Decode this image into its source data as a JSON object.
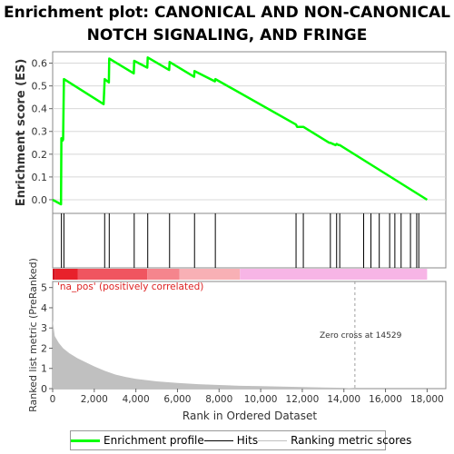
{
  "title_lines": [
    "Enrichment plot: CANONICAL AND NON-CANONICAL",
    "NOTCH SIGNALING, AND FRINGE"
  ],
  "colors": {
    "enrichment_line": "#00ff00",
    "hit_line": "#000000",
    "metric_fill": "#c0c0c0",
    "zero_cross_line": "#a0a0a0",
    "pos_label": "#dd2222",
    "gradient": [
      "#e8212b",
      "#f05560",
      "#f5858d",
      "#f8b0b5",
      "#f7b5e6"
    ]
  },
  "annotations": {
    "na_pos": "'na_pos' (positively correlated)",
    "zero_cross": "Zero cross at 14529"
  },
  "legend": {
    "enrichment": "Enrichment profile",
    "hits": "Hits",
    "metric": "Ranking metric scores"
  },
  "chart_data": [
    {
      "type": "line",
      "name": "enrichment-profile",
      "ylabel": "Enrichment score (ES)",
      "xlim": [
        0,
        18900
      ],
      "ylim": [
        -0.06,
        0.65
      ],
      "yticks": [
        "0.0",
        "0.1",
        "0.2",
        "0.3",
        "0.4",
        "0.5",
        "0.6"
      ],
      "points": [
        [
          0,
          0.0
        ],
        [
          400,
          -0.02
        ],
        [
          420,
          0.27
        ],
        [
          480,
          0.26
        ],
        [
          500,
          0.265
        ],
        [
          540,
          0.53
        ],
        [
          2450,
          0.42
        ],
        [
          2500,
          0.53
        ],
        [
          2700,
          0.515
        ],
        [
          2720,
          0.62
        ],
        [
          3900,
          0.555
        ],
        [
          3920,
          0.61
        ],
        [
          4550,
          0.58
        ],
        [
          4570,
          0.625
        ],
        [
          5600,
          0.57
        ],
        [
          5620,
          0.605
        ],
        [
          6800,
          0.54
        ],
        [
          6820,
          0.565
        ],
        [
          7800,
          0.52
        ],
        [
          7820,
          0.53
        ],
        [
          11700,
          0.33
        ],
        [
          11750,
          0.32
        ],
        [
          12000,
          0.32
        ],
        [
          12050,
          0.32
        ],
        [
          13300,
          0.25
        ],
        [
          13350,
          0.25
        ],
        [
          13600,
          0.24
        ],
        [
          13650,
          0.245
        ],
        [
          13750,
          0.24
        ],
        [
          13800,
          0.24
        ],
        [
          18000,
          0.0
        ]
      ]
    },
    {
      "type": "hits",
      "name": "gene-hits",
      "x": [
        420,
        540,
        2500,
        2720,
        3920,
        4570,
        5620,
        6820,
        7820,
        11700,
        12050,
        13350,
        13650,
        13800,
        14950,
        15300,
        15700,
        16200,
        16450,
        16750,
        17200,
        17500,
        17600
      ]
    },
    {
      "type": "area",
      "name": "ranked-list-metric",
      "xlabel": "Rank in Ordered Dataset",
      "ylabel": "Ranked list metric (PreRanked)",
      "xlim": [
        0,
        18900
      ],
      "ylim": [
        0,
        5.3
      ],
      "yticks": [
        "0",
        "1",
        "2",
        "3",
        "4",
        "5"
      ],
      "xticks": [
        "0",
        "2,000",
        "4,000",
        "6,000",
        "8,000",
        "10,000",
        "12,000",
        "14,000",
        "16,000",
        "18,000"
      ],
      "xtick_values": [
        0,
        2000,
        4000,
        6000,
        8000,
        10000,
        12000,
        14000,
        16000,
        18000
      ],
      "zero_cross": 14529,
      "points": [
        [
          0,
          3.4
        ],
        [
          100,
          2.6
        ],
        [
          300,
          2.25
        ],
        [
          500,
          2.0
        ],
        [
          800,
          1.75
        ],
        [
          1200,
          1.5
        ],
        [
          1600,
          1.3
        ],
        [
          2000,
          1.1
        ],
        [
          2500,
          0.88
        ],
        [
          3000,
          0.7
        ],
        [
          3500,
          0.58
        ],
        [
          4000,
          0.48
        ],
        [
          5000,
          0.36
        ],
        [
          6000,
          0.28
        ],
        [
          7000,
          0.22
        ],
        [
          8000,
          0.18
        ],
        [
          9000,
          0.14
        ],
        [
          10000,
          0.12
        ],
        [
          11000,
          0.1
        ],
        [
          12000,
          0.08
        ],
        [
          13000,
          0.06
        ],
        [
          14000,
          0.04
        ],
        [
          14529,
          0.0
        ],
        [
          18000,
          0.0
        ]
      ]
    }
  ]
}
